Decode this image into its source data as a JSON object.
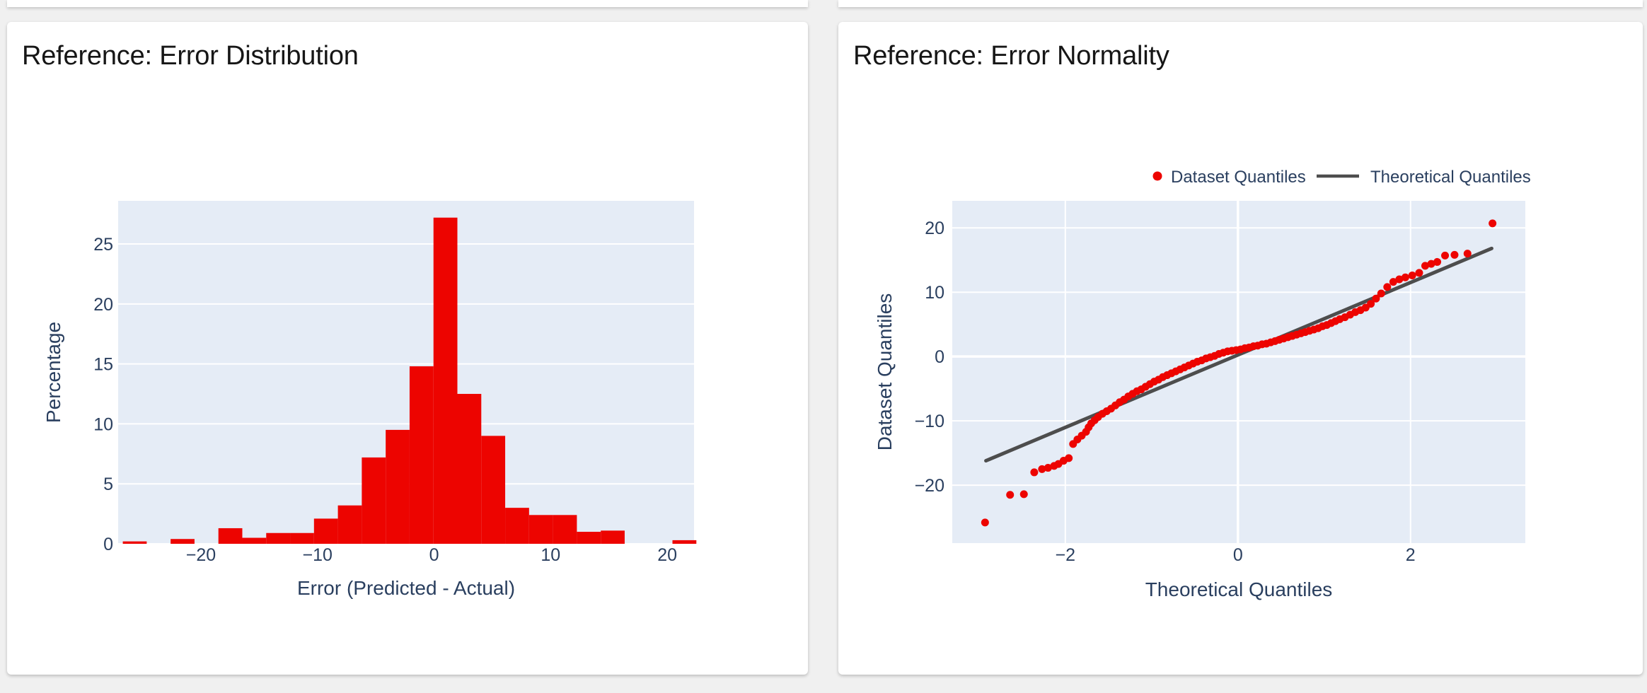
{
  "page": {
    "background_color": "#f0f0f0",
    "card_color": "#ffffff"
  },
  "panels": [
    {
      "title": "Reference: Error Distribution"
    },
    {
      "title": "Reference: Error Normality"
    }
  ],
  "colors": {
    "accent_red": "#ed0400",
    "reference_line_gray": "#4d4d4d",
    "plot_background": "#e5ecf6",
    "grid": "#ffffff",
    "axis_text": "#2a3f5f",
    "title_text": "#161616"
  },
  "chart_data": [
    {
      "type": "bar",
      "title": "Reference: Error Distribution",
      "xlabel": "Error (Predicted - Actual)",
      "ylabel": "Percentage",
      "xlim": [
        -27.1,
        22.3
      ],
      "ylim": [
        0,
        28.6
      ],
      "x_ticks": [
        -20,
        -10,
        0,
        10,
        20
      ],
      "y_ticks": [
        0,
        5,
        10,
        15,
        20,
        25
      ],
      "grid": "horizontal-only",
      "legend": "none",
      "bar_color": "#ed0400",
      "bin_edges": [
        -26.7,
        -24.65,
        -22.6,
        -20.55,
        -18.5,
        -16.45,
        -14.4,
        -12.35,
        -10.3,
        -8.25,
        -6.2,
        -4.15,
        -2.1,
        -0.05,
        2.0,
        4.05,
        6.1,
        8.15,
        10.2,
        12.25,
        14.3,
        16.35,
        18.4,
        20.45,
        22.5
      ],
      "values": [
        0.2,
        0,
        0.4,
        0,
        1.3,
        0.5,
        0.9,
        0.9,
        2.1,
        3.2,
        7.2,
        9.5,
        14.8,
        27.2,
        12.5,
        9.0,
        3.0,
        2.4,
        2.4,
        1.0,
        1.1,
        0,
        0,
        0.3
      ]
    },
    {
      "type": "scatter",
      "title": "Reference: Error Normality",
      "xlabel": "Theoretical Quantiles",
      "ylabel": "Dataset Quantiles",
      "xlim": [
        -3.31,
        3.33
      ],
      "ylim": [
        -29.0,
        24.2
      ],
      "x_ticks": [
        -2,
        0,
        2
      ],
      "y_ticks": [
        -20,
        -10,
        0,
        10,
        20
      ],
      "grid": "both",
      "legend_position": "top-center",
      "series": [
        {
          "name": "Dataset Quantiles",
          "mode": "markers",
          "color": "#ed0400",
          "points": [
            [
              -2.93,
              -25.8
            ],
            [
              -2.64,
              -21.5
            ],
            [
              -2.48,
              -21.4
            ],
            [
              -2.36,
              -18.0
            ],
            [
              -2.27,
              -17.5
            ],
            [
              -2.2,
              -17.3
            ],
            [
              -2.13,
              -17.0
            ],
            [
              -2.08,
              -16.7
            ],
            [
              -2.02,
              -16.2
            ],
            [
              -1.96,
              -15.8
            ],
            [
              -1.91,
              -13.6
            ],
            [
              -1.86,
              -12.9
            ],
            [
              -1.81,
              -12.3
            ],
            [
              -1.76,
              -11.7
            ],
            [
              -1.73,
              -11.0
            ],
            [
              -1.7,
              -10.4
            ],
            [
              -1.66,
              -9.9
            ],
            [
              -1.62,
              -9.4
            ],
            [
              -1.57,
              -8.9
            ],
            [
              -1.52,
              -8.5
            ],
            [
              -1.47,
              -8.1
            ],
            [
              -1.42,
              -7.6
            ],
            [
              -1.37,
              -7.1
            ],
            [
              -1.32,
              -6.7
            ],
            [
              -1.27,
              -6.2
            ],
            [
              -1.22,
              -5.8
            ],
            [
              -1.17,
              -5.4
            ],
            [
              -1.12,
              -5.1
            ],
            [
              -1.07,
              -4.7
            ],
            [
              -1.02,
              -4.3
            ],
            [
              -0.97,
              -3.9
            ],
            [
              -0.92,
              -3.6
            ],
            [
              -0.87,
              -3.2
            ],
            [
              -0.82,
              -2.9
            ],
            [
              -0.77,
              -2.6
            ],
            [
              -0.72,
              -2.3
            ],
            [
              -0.67,
              -2.0
            ],
            [
              -0.62,
              -1.7
            ],
            [
              -0.57,
              -1.4
            ],
            [
              -0.52,
              -1.1
            ],
            [
              -0.47,
              -0.8
            ],
            [
              -0.42,
              -0.6
            ],
            [
              -0.37,
              -0.3
            ],
            [
              -0.32,
              -0.1
            ],
            [
              -0.27,
              0.1
            ],
            [
              -0.22,
              0.4
            ],
            [
              -0.17,
              0.6
            ],
            [
              -0.12,
              0.8
            ],
            [
              -0.07,
              0.9
            ],
            [
              -0.02,
              1.0
            ],
            [
              0.03,
              1.1
            ],
            [
              0.08,
              1.3
            ],
            [
              0.13,
              1.4
            ],
            [
              0.18,
              1.6
            ],
            [
              0.23,
              1.7
            ],
            [
              0.28,
              1.9
            ],
            [
              0.33,
              2.0
            ],
            [
              0.38,
              2.2
            ],
            [
              0.43,
              2.4
            ],
            [
              0.48,
              2.6
            ],
            [
              0.53,
              2.8
            ],
            [
              0.58,
              3.0
            ],
            [
              0.63,
              3.2
            ],
            [
              0.68,
              3.4
            ],
            [
              0.73,
              3.6
            ],
            [
              0.78,
              3.8
            ],
            [
              0.83,
              4.0
            ],
            [
              0.88,
              4.2
            ],
            [
              0.93,
              4.4
            ],
            [
              0.98,
              4.7
            ],
            [
              1.03,
              4.9
            ],
            [
              1.08,
              5.2
            ],
            [
              1.13,
              5.5
            ],
            [
              1.18,
              5.8
            ],
            [
              1.24,
              6.1
            ],
            [
              1.3,
              6.5
            ],
            [
              1.36,
              6.9
            ],
            [
              1.42,
              7.2
            ],
            [
              1.48,
              7.6
            ],
            [
              1.54,
              8.2
            ],
            [
              1.6,
              9.0
            ],
            [
              1.66,
              9.8
            ],
            [
              1.73,
              10.8
            ],
            [
              1.8,
              11.6
            ],
            [
              1.87,
              12.0
            ],
            [
              1.94,
              12.3
            ],
            [
              2.02,
              12.6
            ],
            [
              2.1,
              13.0
            ],
            [
              2.17,
              14.1
            ],
            [
              2.24,
              14.4
            ],
            [
              2.31,
              14.7
            ],
            [
              2.4,
              15.7
            ],
            [
              2.51,
              15.8
            ],
            [
              2.66,
              16.0
            ],
            [
              2.95,
              20.7
            ]
          ]
        },
        {
          "name": "Theoretical Quantiles",
          "mode": "line",
          "color": "#4d4d4d",
          "points": [
            [
              -2.92,
              -16.2
            ],
            [
              2.94,
              16.8
            ]
          ]
        }
      ]
    }
  ]
}
